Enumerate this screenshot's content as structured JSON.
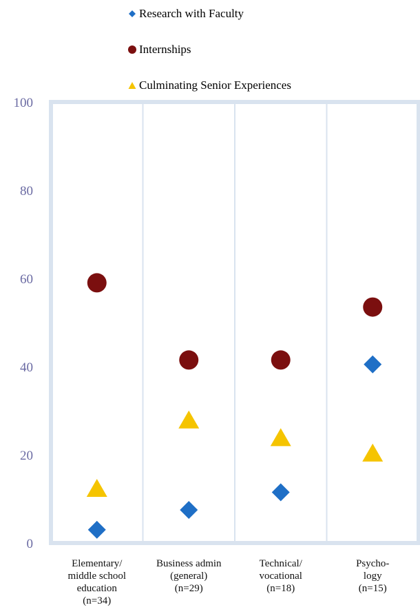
{
  "chart_data": {
    "type": "scatter",
    "title": "",
    "xlabel": "",
    "ylabel": "",
    "ylim": [
      0,
      100
    ],
    "yticks": [
      0,
      20,
      40,
      60,
      80,
      100
    ],
    "grid": "vertical category separators",
    "legend_position": "top",
    "categories": [
      [
        "Elementary/",
        "middle school",
        "education",
        "(n=34)"
      ],
      [
        "Business admin",
        "(general)",
        "(n=29)"
      ],
      [
        "Technical/",
        "vocational",
        "(n=18)"
      ],
      [
        "Psycho-",
        "logy",
        "(n=15)"
      ]
    ],
    "series": [
      {
        "name": "Research with Faculty",
        "marker": "diamond",
        "color": "#1f6fc6",
        "values": [
          3,
          7.5,
          11.5,
          40.5
        ]
      },
      {
        "name": "Internships",
        "marker": "circle",
        "color": "#7b0f0f",
        "values": [
          59,
          41.5,
          41.5,
          53.5
        ]
      },
      {
        "name": "Culminating Senior Experiences",
        "marker": "triangle",
        "color": "#f5c400",
        "values": [
          12.5,
          28,
          24,
          20.5
        ]
      }
    ]
  }
}
